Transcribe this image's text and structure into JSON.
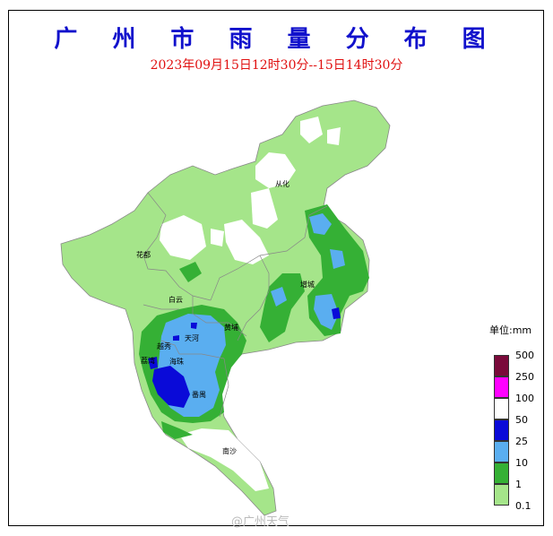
{
  "title": "广 州 市 雨 量 分 布 图",
  "subtitle": "2023年09月15日12时30分--15日14时30分",
  "places": [
    "从化",
    "花都",
    "白云",
    "增城",
    "黄埔",
    "天河",
    "越秀",
    "荔湾",
    "海珠",
    "番禺",
    "南沙"
  ],
  "legend": {
    "title": "单位:mm",
    "items": [
      {
        "label": "500",
        "color": "#7a0a3a"
      },
      {
        "label": "250",
        "color": "#ff00ff"
      },
      {
        "label": "100",
        "color": "#ffffff"
      },
      {
        "label": "50",
        "color": "#0a0ad8"
      },
      {
        "label": "25",
        "color": "#5aaef0"
      },
      {
        "label": "10",
        "color": "#35b035"
      },
      {
        "label": "1",
        "color": "#a5e58a"
      },
      {
        "label": "0.1",
        "color": "#ffffff"
      }
    ]
  },
  "colors": {
    "light_green": "#a5e58a",
    "green": "#35b035",
    "light_blue": "#5aaef0",
    "blue": "#0a0ad8"
  },
  "watermark": "@广州天气"
}
